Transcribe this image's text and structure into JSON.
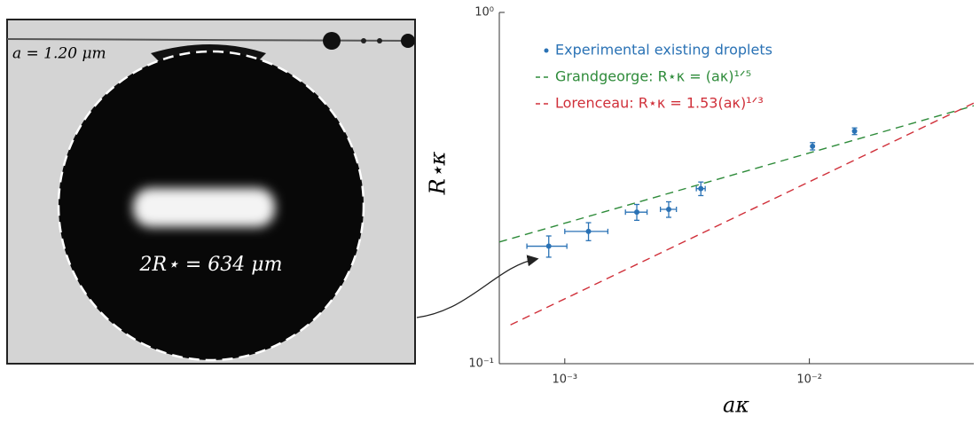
{
  "chart_data": {
    "type": "scatter",
    "annotations": [
      "a = 1.20 μm",
      "2R⋆ = 634 μm"
    ],
    "xlabel": "aκ",
    "ylabel": "R⋆κ",
    "xscale": "log",
    "yscale": "log",
    "xlim": [
      0.00054,
      0.047
    ],
    "ylim": [
      0.1,
      1
    ],
    "xticks": [
      {
        "value": 0.001,
        "label": "10⁻³"
      },
      {
        "value": 0.01,
        "label": "10⁻²"
      }
    ],
    "yticks": [
      {
        "value": 0.1,
        "label": "10⁻¹"
      },
      {
        "value": 1,
        "label": "10⁰"
      }
    ],
    "legend": "upper left",
    "series": [
      {
        "name": "Experimental existing droplets",
        "color": "#2a72b5",
        "style": "points",
        "x": [
          0.00086,
          0.00125,
          0.00197,
          0.00266,
          0.0036,
          0.0103,
          0.0153
        ],
        "values": [
          0.216,
          0.238,
          0.27,
          0.275,
          0.315,
          0.416,
          0.459
        ],
        "xerr": [
          0.00016,
          0.00025,
          0.0002,
          0.0002,
          0.00015,
          0,
          0
        ],
        "yerr": [
          0.015,
          0.014,
          0.014,
          0.014,
          0.014,
          0.01,
          0.01
        ]
      },
      {
        "name": "Grandgeorge: R⋆κ = (aκ)¹ᐟ⁵",
        "color": "#2e8b3a",
        "style": "dashed",
        "x": [
          0.00054,
          0.047
        ],
        "values": [
          0.222,
          0.5425
        ]
      },
      {
        "name": "Lorenceau: R⋆κ = 1.53(aκ)¹ᐟ³",
        "color": "#d0303a",
        "style": "dashed",
        "x": [
          0.0006,
          0.047
        ],
        "values": [
          0.129,
          0.552
        ]
      }
    ]
  }
}
